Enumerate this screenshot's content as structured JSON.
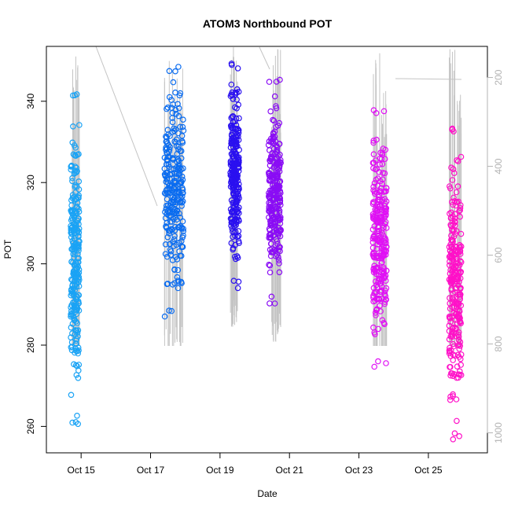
{
  "chart_data": {
    "type": "scatter",
    "title": "ATOM3 Northbound POT",
    "xlabel": "Date",
    "ylabel": "POT",
    "x_ticks": [
      "Oct 15",
      "Oct 17",
      "Oct 19",
      "Oct 21",
      "Oct 23",
      "Oct 25"
    ],
    "x_tick_days": [
      15,
      17,
      19,
      21,
      23,
      25
    ],
    "xlim": [
      14.0,
      26.7
    ],
    "ylim": [
      253.5,
      353.5
    ],
    "y_ticks": [
      260,
      280,
      300,
      320,
      340
    ],
    "y2_ticks": [
      200,
      400,
      600,
      800,
      1000
    ],
    "y2lim": [
      1045,
      130
    ],
    "grid": false,
    "series": [
      {
        "color": "#1aa3f5",
        "x_range": [
          14.7,
          14.95
        ],
        "y_range": [
          260.5,
          342
        ]
      },
      {
        "color": "#0a6cf0",
        "x_range": [
          17.4,
          17.95
        ],
        "y_range": [
          286.5,
          349
        ]
      },
      {
        "color": "#2a10f0",
        "x_range": [
          19.3,
          19.55
        ],
        "y_range": [
          294,
          349.5
        ]
      },
      {
        "color": "#8a0cf5",
        "x_range": [
          20.4,
          20.75
        ],
        "y_range": [
          290,
          345.5
        ]
      },
      {
        "color": "#e010f5",
        "x_range": [
          23.4,
          23.8
        ],
        "y_range": [
          274.5,
          339
        ]
      },
      {
        "color": "#ff10c8",
        "x_range": [
          25.6,
          25.95
        ],
        "y_range": [
          256.5,
          333.5
        ]
      }
    ],
    "secondary_line": {
      "color": "#c0c0c0",
      "description_units": "right axis"
    }
  }
}
